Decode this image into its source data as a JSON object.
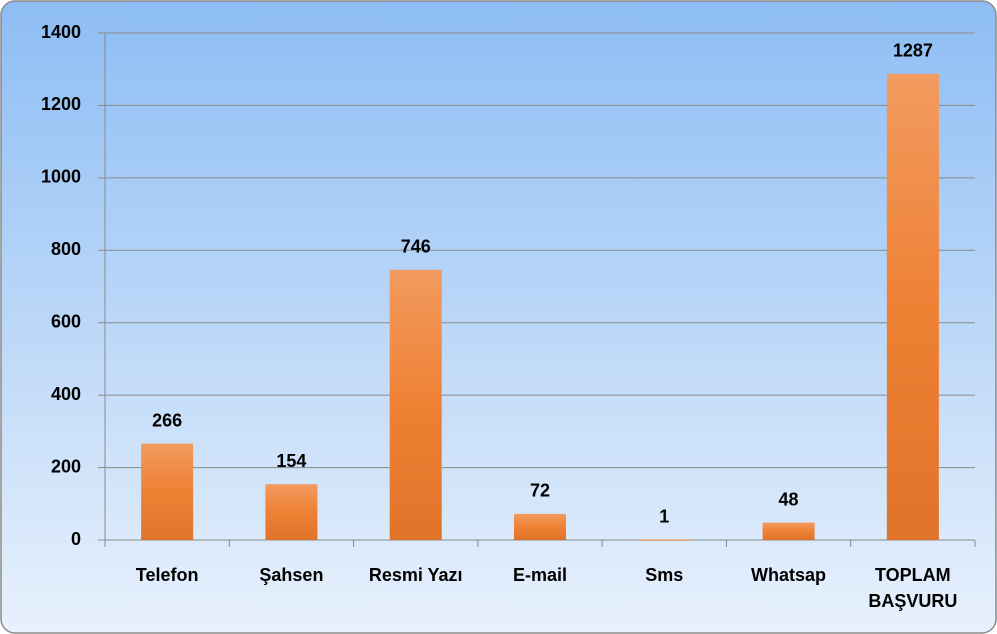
{
  "chart_data": {
    "type": "bar",
    "categories": [
      "Telefon",
      "Şahsen",
      "Resmi Yazı",
      "E-mail",
      "Sms",
      "Whatsap",
      "TOPLAM BAŞVURU"
    ],
    "values": [
      266,
      154,
      746,
      72,
      1,
      48,
      1287
    ],
    "color": "#ee7a2a",
    "ylim": [
      0,
      1400
    ],
    "yticks": [
      0,
      200,
      400,
      600,
      800,
      1000,
      1200,
      1400
    ],
    "grid": true
  }
}
